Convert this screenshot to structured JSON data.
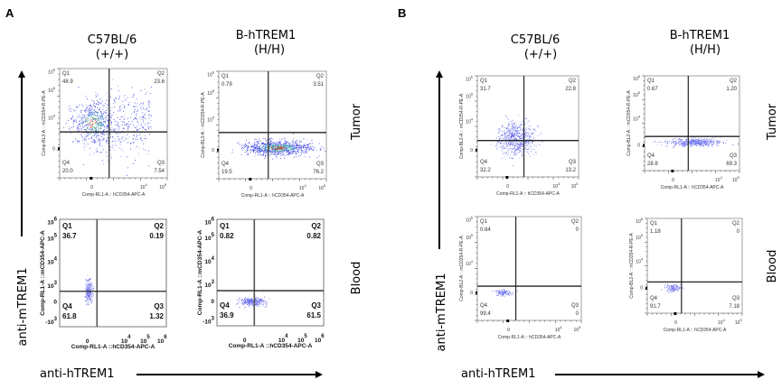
{
  "panels": {
    "A": {
      "label": "A",
      "columns": [
        {
          "title_line1": "C57BL/6",
          "title_line2": "(+/+)"
        },
        {
          "title_line1": "B-hTREM1",
          "title_line2": "(H/H)"
        }
      ],
      "rows": [
        "Tumor",
        "Blood"
      ],
      "y_arrow_label": "anti-mTREM1",
      "x_arrow_label": "anti-hTREM1"
    },
    "B": {
      "label": "B",
      "columns": [
        {
          "title_line1": "C57BL/6",
          "title_line2": "(+/+)"
        },
        {
          "title_line1": "B-hTREM1",
          "title_line2": "(H/H)"
        }
      ],
      "rows": [
        "Tumor",
        "Blood"
      ],
      "y_arrow_label": "anti-mTREM1",
      "x_arrow_label": "anti-hTREM1"
    }
  },
  "chart_data": [
    {
      "type": "scatter",
      "id": "A-tumor-C57BL6",
      "panel": "A",
      "row": "Tumor",
      "genotype": "C57BL/6 (+/+)",
      "xlabel": "Comp-RL1-A :: hCD354-APC-A",
      "ylabel": "Comp-BL3-A :: mCD354-R-PE-A",
      "x_ticks": [
        "0",
        "10^4",
        "10^5"
      ],
      "y_ticks": [
        "0",
        "10^4",
        "10^5",
        "10^6"
      ],
      "quadrants": {
        "Q1": "48.9",
        "Q2": "23.6",
        "Q3": "7.54",
        "Q4": "20.0"
      },
      "gate": {
        "x": 0.46,
        "y": 0.42
      },
      "population": {
        "cx": 0.3,
        "cy": 0.5,
        "sx": 0.2,
        "sy": 0.2,
        "n": 900,
        "tail_x": 0.35,
        "density": "high"
      }
    },
    {
      "type": "scatter",
      "id": "A-tumor-hTREM1",
      "panel": "A",
      "row": "Tumor",
      "genotype": "B-hTREM1 (H/H)",
      "xlabel": "Comp-RL1-A :: hCD354-APC-A",
      "ylabel": "Comp-BL3-A :: mCD354-R-PE-A",
      "x_ticks": [
        "0",
        "10^4",
        "10^5"
      ],
      "y_ticks": [
        "0",
        "10^4",
        "10^5",
        "10^6"
      ],
      "quadrants": {
        "Q1": "0.79",
        "Q2": "3.51",
        "Q3": "76.2",
        "Q4": "19.5"
      },
      "gate": {
        "x": 0.46,
        "y": 0.43
      },
      "population": {
        "cx": 0.55,
        "cy": 0.29,
        "sx": 0.32,
        "sy": 0.07,
        "n": 900,
        "density": "high"
      }
    },
    {
      "type": "scatter",
      "id": "A-blood-C57BL6",
      "panel": "A",
      "row": "Blood",
      "genotype": "C57BL/6 (+/+)",
      "xlabel": "Comp-RL1-A ::hCD354-APC-A",
      "ylabel": "Comp-RL1-A ::mCD354-APC-A",
      "x_ticks": [
        "0",
        "10^4",
        "10^5",
        "10^6"
      ],
      "y_ticks": [
        "-10^3",
        "0",
        "10^3",
        "10^4",
        "10^5",
        "10^6"
      ],
      "quadrants": {
        "Q1": "36.7",
        "Q2": "0.19",
        "Q3": "1.32",
        "Q4": "61.8"
      },
      "gate": {
        "x": 0.35,
        "y": 0.33
      },
      "population": {
        "cx": 0.27,
        "cy": 0.33,
        "sx": 0.03,
        "sy": 0.1,
        "n": 260,
        "density": "low"
      }
    },
    {
      "type": "scatter",
      "id": "A-blood-hTREM1",
      "panel": "A",
      "row": "Blood",
      "genotype": "B-hTREM1 (H/H)",
      "xlabel": "Comp-RL1-A ::hCD354-APC-A",
      "ylabel": "Comp-RL1-A ::mCD354-APC-A",
      "x_ticks": [
        "0",
        "10^4",
        "10^5",
        "10^6"
      ],
      "y_ticks": [
        "-10^3",
        "0",
        "10^3",
        "10^4",
        "10^5",
        "10^6"
      ],
      "quadrants": {
        "Q1": "0.82",
        "Q2": "0.82",
        "Q3": "61.5",
        "Q4": "36.9"
      },
      "gate": {
        "x": 0.35,
        "y": 0.33
      },
      "population": {
        "cx": 0.33,
        "cy": 0.23,
        "sx": 0.11,
        "sy": 0.04,
        "n": 320,
        "density": "low"
      }
    },
    {
      "type": "scatter",
      "id": "B-tumor-C57BL6",
      "panel": "B",
      "row": "Tumor",
      "genotype": "C57BL/6 (+/+)",
      "xlabel": "Comp-RL1-A :: hCD354-APC-A",
      "ylabel": "Comp-BL2-A :: mCD354-R-PE-A",
      "x_ticks": [
        "0",
        "10^4",
        "10^5"
      ],
      "y_ticks": [
        "0",
        "10^4",
        "10^5",
        "10^6"
      ],
      "quadrants": {
        "Q1": "31.7",
        "Q2": "22.8",
        "Q3": "13.2",
        "Q4": "32.2"
      },
      "gate": {
        "x": 0.46,
        "y": 0.36
      },
      "population": {
        "cx": 0.38,
        "cy": 0.38,
        "sx": 0.18,
        "sy": 0.16,
        "n": 650,
        "density": "low"
      }
    },
    {
      "type": "scatter",
      "id": "B-tumor-hTREM1",
      "panel": "B",
      "row": "Tumor",
      "genotype": "B-hTREM1 (H/H)",
      "xlabel": "Comp-RL1-A :: hCD354-APC-A",
      "ylabel": "Comp-BL2-A :: mCD354-R-PE-A",
      "x_ticks": [
        "0",
        "10^4",
        "10^5"
      ],
      "y_ticks": [
        "0",
        "10^4",
        "10^5",
        "10^6"
      ],
      "quadrants": {
        "Q1": "0.67",
        "Q2": "1.20",
        "Q3": "69.3",
        "Q4": "28.8"
      },
      "gate": {
        "x": 0.46,
        "y": 0.36
      },
      "population": {
        "cx": 0.52,
        "cy": 0.3,
        "sx": 0.28,
        "sy": 0.04,
        "n": 500,
        "density": "low"
      }
    },
    {
      "type": "scatter",
      "id": "B-blood-C57BL6",
      "panel": "B",
      "row": "Blood",
      "genotype": "C57BL/6 (+/+)",
      "xlabel": "Comp-RL1-A :: hCD354-APC-A",
      "ylabel": "Comp-BL2-A :: mCD354-R-PE-A",
      "x_ticks": [
        "0",
        "10^4",
        "10^5"
      ],
      "y_ticks": [
        "0",
        "10^4",
        "10^5",
        "10^6"
      ],
      "quadrants": {
        "Q1": "0.84",
        "Q2": "0",
        "Q3": "0",
        "Q4": "99.4"
      },
      "gate": {
        "x": 0.37,
        "y": 0.33
      },
      "population": {
        "cx": 0.25,
        "cy": 0.27,
        "sx": 0.07,
        "sy": 0.03,
        "n": 110,
        "density": "low"
      }
    },
    {
      "type": "scatter",
      "id": "B-blood-hTREM1",
      "panel": "B",
      "row": "Blood",
      "genotype": "B-hTREM1 (H/H)",
      "xlabel": "Comp-RL1-A :: hCD354-APC-A",
      "ylabel": "Comp-BL2-A :: mCD354-R-PE-A",
      "x_ticks": [
        "0",
        "10^4",
        "10^5"
      ],
      "y_ticks": [
        "0",
        "10^4",
        "10^5",
        "10^6"
      ],
      "quadrants": {
        "Q1": "1.18",
        "Q2": "0",
        "Q3": "7.18",
        "Q4": "91.7"
      },
      "gate": {
        "x": 0.36,
        "y": 0.33
      },
      "population": {
        "cx": 0.27,
        "cy": 0.27,
        "sx": 0.08,
        "sy": 0.04,
        "n": 130,
        "density": "low"
      }
    }
  ]
}
